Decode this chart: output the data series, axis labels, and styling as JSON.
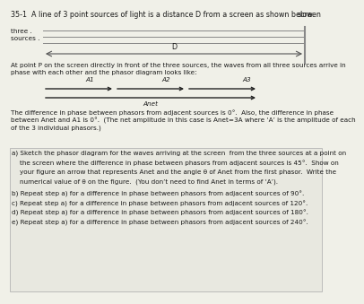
{
  "title_text": "35-1  A line of 3 point sources of light is a distance D from a screen as shown below.",
  "screen_label": "screen",
  "three_label": "three .",
  "sources_label": "sources .",
  "D_label": "D",
  "point_P_text": "At point P on the screen directly in front of the three sources, the waves from all three sources arrive in\nphase with each other and the phasor diagram looks like:",
  "A1_label": "A1",
  "A2_label": "A2",
  "A3_label": "A3",
  "Anet_label": "Anet",
  "desc_text1": "The difference in phase between phasors from adjacent sources is 0°.  Also, the difference in phase",
  "desc_text2": "between Anet and A1 is 0°.  (The net amplitude in this case is Anet=3A where ‘A’ is the amplitude of each",
  "desc_text3": "of the 3 individual phasors.)",
  "q_a1": "a) Sketch the phasor diagram for the waves arriving at the screen  from the three sources at a point on",
  "q_a2": "    the screen where the difference in phase between phasors from adjacent sources is 45°.  Show on",
  "q_a3": "    your figure an arrow that represents Anet and the angle θ of Anet from the first phasor.  Write the",
  "q_a4": "    numerical value of θ on the figure.  (You don’t need to find Anet in terms of ‘A’).",
  "q_b": "b) Repeat step a) for a difference in phase between phasors from adjacent sources of 90°.",
  "q_c": "c) Repeat step a) for a difference in phase between phasors from adjacent sources of 120°.",
  "q_d": "d) Repeat step a) for a difference in phase between phasors from adjacent sources of 180°.",
  "q_e": "e) Repeat step a) for a difference in phase between phasors from adjacent sources of 240°.",
  "bg_color": "#f0f0e8",
  "box_color": "#e8e8e0",
  "text_color": "#1a1a1a",
  "line_color": "#555555",
  "arrow_color": "#222222"
}
